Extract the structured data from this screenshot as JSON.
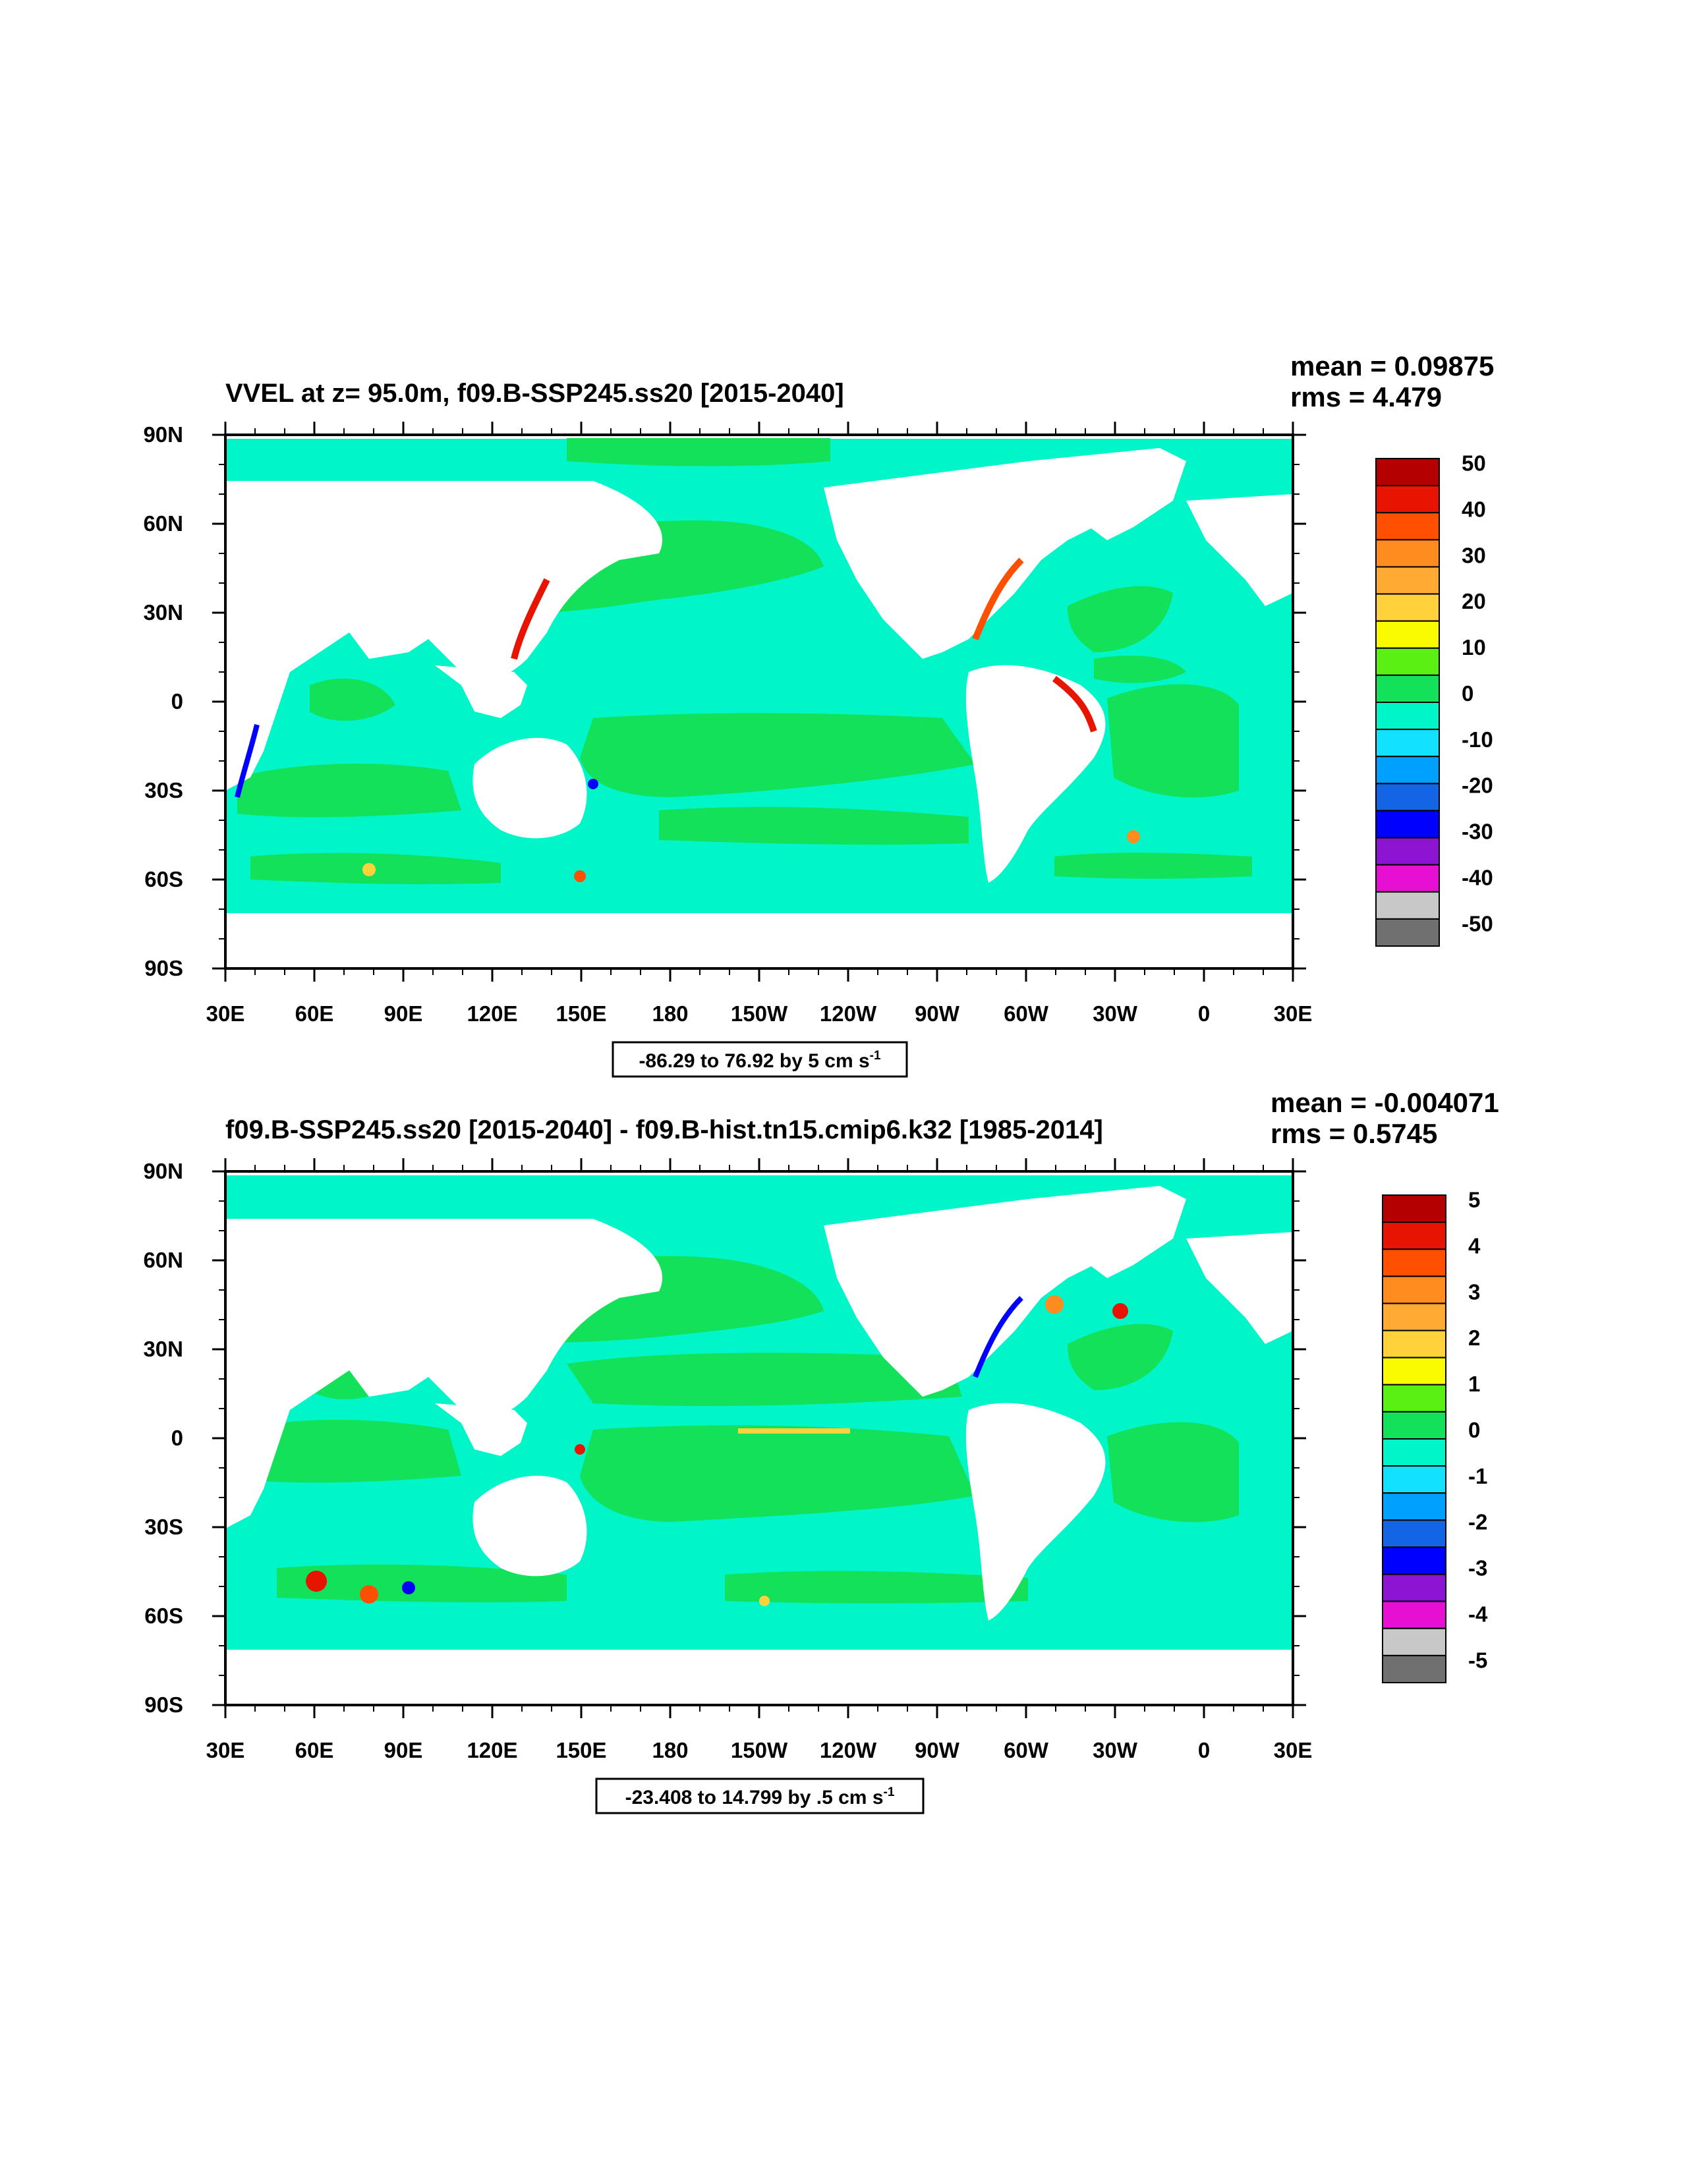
{
  "palette": [
    "#707070",
    "#c8c8c8",
    "#e60fd2",
    "#8c14d2",
    "#0000ff",
    "#1464e6",
    "#00a0ff",
    "#12e1ff",
    "#00f5c8",
    "#14e15a",
    "#5af014",
    "#fafa00",
    "#ffd23c",
    "#ffaa32",
    "#ff8c1e",
    "#ff4f00",
    "#e61400",
    "#b40000"
  ],
  "colors": {
    "land": "#ffffff",
    "frame": "#000000"
  },
  "panels": [
    {
      "title": "VVEL at z=  95.0m, f09.B-SSP245.ss20 [2015-2040]",
      "mean_text": "mean = 0.09875",
      "rms_text": "rms = 4.479",
      "range_label": "-86.29 to 76.92 by 5 cm s",
      "range_unit_sup": "-1",
      "colorbar_labels": [
        "50",
        "40",
        "30",
        "20",
        "10",
        "0",
        "-10",
        "-20",
        "-30",
        "-40",
        "-50"
      ],
      "lat_labels": [
        "90N",
        "60N",
        "30N",
        "0",
        "30S",
        "60S",
        "90S"
      ],
      "lon_labels": [
        "30E",
        "60E",
        "90E",
        "120E",
        "150E",
        "180",
        "150W",
        "120W",
        "90W",
        "60W",
        "30W",
        "0",
        "30E"
      ],
      "field": {
        "base_color": "#00f5c8",
        "background_color": "#14e15a"
      }
    },
    {
      "title": "f09.B-SSP245.ss20 [2015-2040] - f09.B-hist.tn15.cmip6.k32 [1985-2014]",
      "mean_text": "mean = -0.004071",
      "rms_text": "rms = 0.5745",
      "range_label": "-23.408 to 14.799 by .5 cm s",
      "range_unit_sup": "-1",
      "colorbar_labels": [
        "5",
        "4",
        "3",
        "2",
        "1",
        "0",
        "-1",
        "-2",
        "-3",
        "-4",
        "-5"
      ],
      "lat_labels": [
        "90N",
        "60N",
        "30N",
        "0",
        "30S",
        "60S",
        "90S"
      ],
      "lon_labels": [
        "30E",
        "60E",
        "90E",
        "120E",
        "150E",
        "180",
        "150W",
        "120W",
        "90W",
        "60W",
        "30W",
        "0",
        "30E"
      ],
      "field": {
        "base_color": "#00f5c8",
        "background_color": "#14e15a"
      }
    }
  ]
}
